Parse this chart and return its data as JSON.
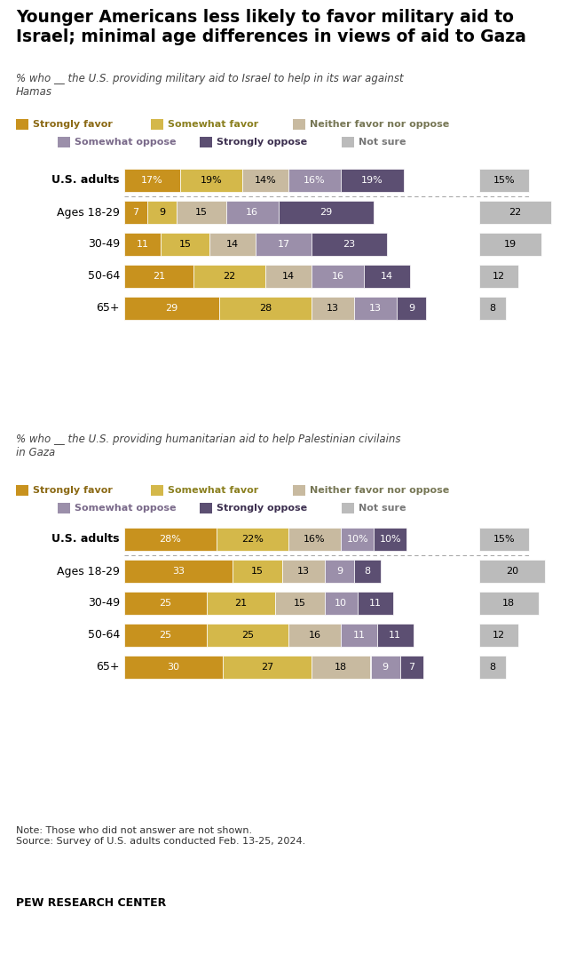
{
  "title": "Younger Americans less likely to favor military aid to\nIsrael; minimal age differences in views of aid to Gaza",
  "subtitle1": "% who __ the U.S. providing military aid to Israel to help in its war against\nHamas",
  "subtitle2": "% who __ the U.S. providing humanitarian aid to help Palestinian civilains\nin Gaza",
  "note": "Note: Those who did not answer are not shown.\nSource: Survey of U.S. adults conducted Feb. 13-25, 2024.",
  "source_label": "PEW RESEARCH CENTER",
  "colors": {
    "strongly_favor": "#C8921E",
    "somewhat_favor": "#D4B84A",
    "neither": "#C8BAA0",
    "somewhat_oppose": "#9B8FAA",
    "strongly_oppose": "#5C4F72",
    "not_sure": "#BBBBBB"
  },
  "legend_labels": [
    "Strongly favor",
    "Somewhat favor",
    "Neither favor nor oppose",
    "Somewhat oppose",
    "Strongly oppose",
    "Not sure"
  ],
  "legend_text_colors": [
    "#8B6914",
    "#8B8020",
    "#777755",
    "#7A6A8A",
    "#3D3050",
    "#777777"
  ],
  "section1": {
    "rows": [
      {
        "label": "U.S. adults",
        "values": [
          17,
          19,
          14,
          16,
          19
        ],
        "not_sure": 15,
        "is_adults": true
      },
      {
        "label": "Ages 18-29",
        "values": [
          7,
          9,
          15,
          16,
          29
        ],
        "not_sure": 22,
        "is_adults": false
      },
      {
        "label": "30-49",
        "values": [
          11,
          15,
          14,
          17,
          23
        ],
        "not_sure": 19,
        "is_adults": false
      },
      {
        "label": "50-64",
        "values": [
          21,
          22,
          14,
          16,
          14
        ],
        "not_sure": 12,
        "is_adults": false
      },
      {
        "label": "65+",
        "values": [
          29,
          28,
          13,
          13,
          9
        ],
        "not_sure": 8,
        "is_adults": false
      }
    ]
  },
  "section2": {
    "rows": [
      {
        "label": "U.S. adults",
        "values": [
          28,
          22,
          16,
          10,
          10
        ],
        "not_sure": 15,
        "is_adults": true
      },
      {
        "label": "Ages 18-29",
        "values": [
          33,
          15,
          13,
          9,
          8
        ],
        "not_sure": 20,
        "is_adults": false
      },
      {
        "label": "30-49",
        "values": [
          25,
          21,
          15,
          10,
          11
        ],
        "not_sure": 18,
        "is_adults": false
      },
      {
        "label": "50-64",
        "values": [
          25,
          25,
          16,
          11,
          11
        ],
        "not_sure": 12,
        "is_adults": false
      },
      {
        "label": "65+",
        "values": [
          30,
          27,
          18,
          9,
          7
        ],
        "not_sure": 8,
        "is_adults": false
      }
    ]
  }
}
